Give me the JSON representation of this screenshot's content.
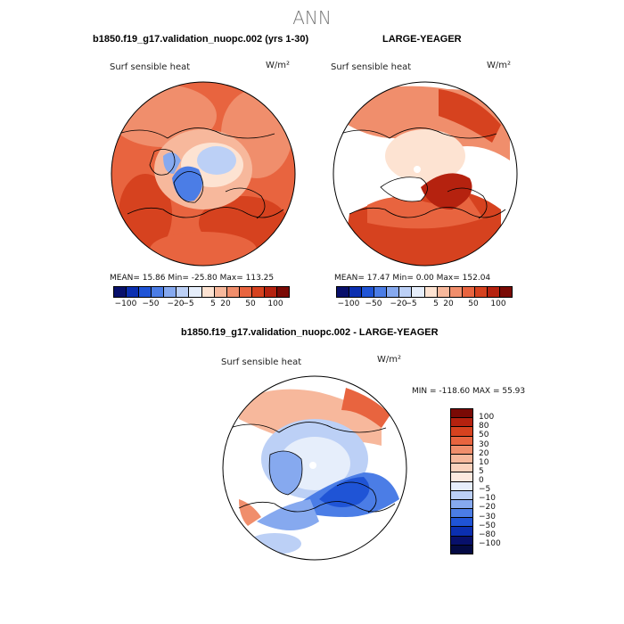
{
  "title": "ANN",
  "panels": {
    "p1": {
      "title": "b1850.f19_g17.validation_nuopc.002 (yrs 1-30)",
      "variable": "Surf sensible heat",
      "units": "W/m²",
      "stats": "MEAN=   15.86   Min=  -25.80   Max=  113.25"
    },
    "p2": {
      "title": "LARGE-YEAGER",
      "variable": "Surf sensible heat",
      "units": "W/m²",
      "stats": "MEAN=   17.47   Min=    0.00   Max=  152.04"
    },
    "p3": {
      "title": "b1850.f19_g17.validation_nuopc.002 - LARGE-YEAGER",
      "variable": "Surf sensible heat",
      "units": "W/m²",
      "stats": "MIN = -118.60  MAX =  55.93"
    }
  },
  "colorbar_top": {
    "ticks": [
      "−100",
      "−50",
      "−20",
      "−5",
      "5",
      "20",
      "50",
      "100"
    ],
    "colors": [
      "#08106b",
      "#0b2fb0",
      "#1f54d6",
      "#4b7de6",
      "#86a9ef",
      "#bcd0f6",
      "#e6eefb",
      "#fde3d2",
      "#f7b89c",
      "#f08e6c",
      "#e8643f",
      "#d6421f",
      "#b5220f",
      "#7a0a05"
    ]
  },
  "colorbar_diff": {
    "ticks": [
      "100",
      "80",
      "50",
      "30",
      "20",
      "10",
      "5",
      "0",
      "−5",
      "−10",
      "−20",
      "−30",
      "−50",
      "−80",
      "−100"
    ],
    "colors": [
      "#7a0a05",
      "#b5220f",
      "#d6421f",
      "#e8643f",
      "#f08e6c",
      "#f7b89c",
      "#fbd2bd",
      "#fde9df",
      "#e6eefb",
      "#bcd0f6",
      "#86a9ef",
      "#4b7de6",
      "#1f54d6",
      "#0b2fb0",
      "#08106b",
      "#040a44"
    ]
  }
}
